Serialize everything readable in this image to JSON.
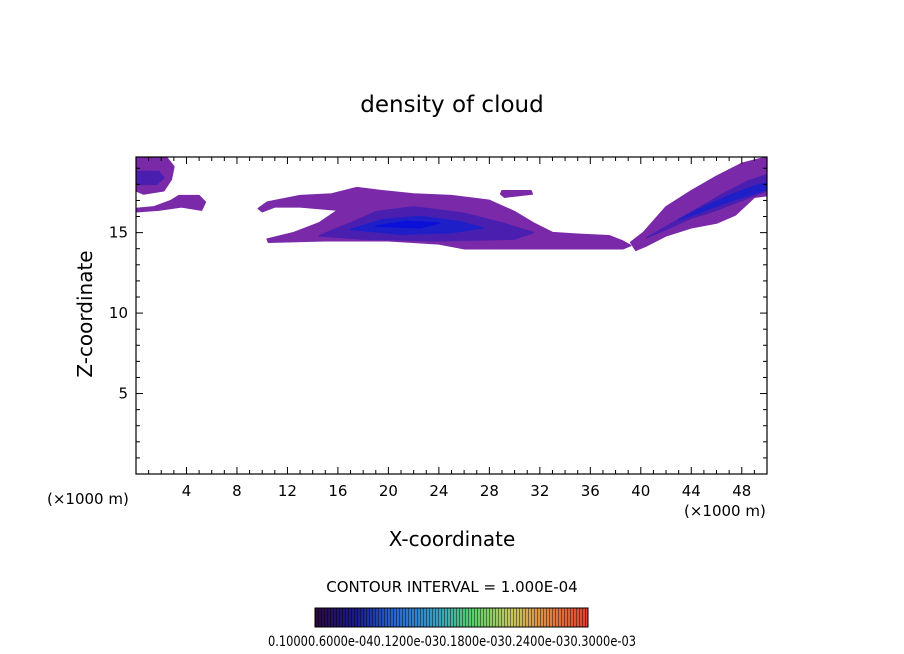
{
  "chart_data": {
    "type": "heatmap",
    "title": "density of cloud",
    "xlabel": "X-coordinate",
    "ylabel": "Z-coordinate",
    "x_unit_left": "(×1000 m)",
    "x_unit_right": "(×1000 m)",
    "x_ticks": [
      "4",
      "8",
      "12",
      "16",
      "20",
      "24",
      "28",
      "32",
      "36",
      "40",
      "44",
      "48"
    ],
    "y_ticks": [
      "5",
      "10",
      "15"
    ],
    "xlim": [
      0,
      50
    ],
    "ylim": [
      0,
      19.7
    ],
    "contour_interval_text": "CONTOUR INTERVAL = 1.000E-04",
    "colorbar_labels": [
      "0.1000",
      "0.6000e-04",
      "0.1200e-03",
      "0.1800e-03",
      "0.2400e-03",
      "0.3000e-03"
    ],
    "colorbar_labels_display": "0.10000.6000e-040.1200e-030.1800e-030.2400e-030.3000e-03",
    "colors": {
      "outer": "#7a2aa8",
      "mid": "#4a1fb0",
      "inner": "#1f1fc8",
      "core": "#0a10d8"
    },
    "cloud_regions": [
      {
        "name": "top-left cell",
        "x": [
          0,
          3
        ],
        "z": [
          17.5,
          19.7
        ],
        "level": "outer"
      },
      {
        "name": "left tail",
        "x": [
          0,
          5
        ],
        "z": [
          16.5,
          17.3
        ],
        "level": "outer"
      },
      {
        "name": "main anvil",
        "x": [
          10.5,
          39
        ],
        "z": [
          14,
          17.8
        ],
        "level": "mid",
        "core_x": [
          17,
          24
        ],
        "core_z": [
          15,
          16
        ]
      },
      {
        "name": "right rising cloud",
        "x": [
          38.5,
          50
        ],
        "z": [
          14,
          19.7
        ],
        "level": "mid",
        "core_x": [
          44,
          49
        ],
        "core_z": [
          16.5,
          18
        ]
      }
    ]
  }
}
